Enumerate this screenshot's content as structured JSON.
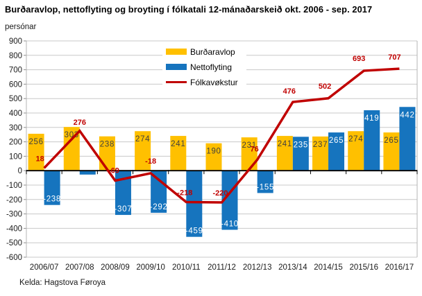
{
  "header": {
    "title": "Burðaravlop, nettoflyting og broyting í fólkatali 12-mánaðarskeið okt. 2006 - sep. 2017",
    "unit_label": "persónar"
  },
  "footer": {
    "source": "Kelda: Hagstova Føroya"
  },
  "colors": {
    "burdaravlop": "#FFC000",
    "nettoflyting": "#1674BE",
    "folkavokstur": "#C00000",
    "gridline": "#C8C8C8",
    "axis_line": "#B4B4B4",
    "zero_line": "#000000",
    "tick": "#8C8C8C",
    "bar_label_dark": "#3F3F3F",
    "bar_label_light": "#FFFFFF",
    "axis_text": "#1a1a1a"
  },
  "chart_data": {
    "type": "bar",
    "subtype": "bar+line combo",
    "title": "Burðaravlop, nettoflyting og broyting í fólkatali 12-mánaðarskeið okt. 2006 - sep. 2017",
    "ylabel": "persónar",
    "ylim": [
      -600,
      900
    ],
    "ytick_step": 100,
    "grid": true,
    "legend_position": "top-center",
    "categories": [
      "2006/07",
      "2007/08",
      "2008/09",
      "2009/10",
      "2010/11",
      "2011/12",
      "2012/13",
      "2013/14",
      "2014/15",
      "2015/16",
      "2016/17"
    ],
    "series": [
      {
        "name": "Burðaravlop",
        "type": "bar",
        "color": "#FFC000",
        "values": [
          256,
          303,
          238,
          274,
          241,
          190,
          231,
          241,
          237,
          274,
          265
        ],
        "data_labels": [
          256,
          303,
          238,
          274,
          241,
          190,
          231,
          241,
          237,
          274,
          265
        ]
      },
      {
        "name": "Nettoflyting",
        "type": "bar",
        "color": "#1674BE",
        "values": [
          -238,
          -27,
          -307,
          -292,
          -459,
          -410,
          -155,
          235,
          265,
          419,
          442
        ],
        "data_labels": [
          -238,
          null,
          -307,
          -292,
          -459,
          -410,
          -155,
          235,
          265,
          419,
          442
        ]
      },
      {
        "name": "Fólkavøkstur",
        "type": "line",
        "color": "#C00000",
        "values": [
          18,
          276,
          -69,
          -18,
          -218,
          -220,
          76,
          476,
          502,
          693,
          707
        ],
        "data_labels": [
          18,
          276,
          -69,
          -18,
          -218,
          -220,
          76,
          476,
          502,
          693,
          707
        ]
      }
    ]
  }
}
